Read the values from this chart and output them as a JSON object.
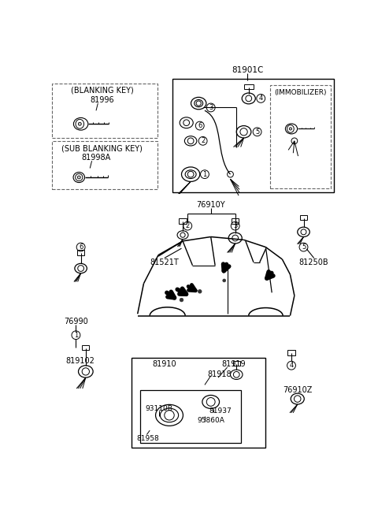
{
  "bg_color": "#ffffff",
  "fig_width": 4.8,
  "fig_height": 6.56,
  "dpi": 100,
  "lc": "#000000",
  "gray": "#888888",
  "labels": {
    "part_81901C": "81901C",
    "blanking_key": "(BLANKING KEY)",
    "part_81996": "81996",
    "sub_blanking_key": "(SUB BLANKING KEY)",
    "part_81998A": "81998A",
    "immobilizer": "(IMMOBILIZER)",
    "part_76910Y": "76910Y",
    "part_81521T": "81521T",
    "part_81250B": "81250B",
    "part_76990": "76990",
    "part_819102": "819102",
    "part_81910": "81910",
    "part_81919": "81919",
    "part_81918": "81918",
    "part_93110B": "93110B",
    "part_81937": "81937",
    "part_95860A": "95860A",
    "part_81958": "81958",
    "part_76910Z": "76910Z"
  }
}
